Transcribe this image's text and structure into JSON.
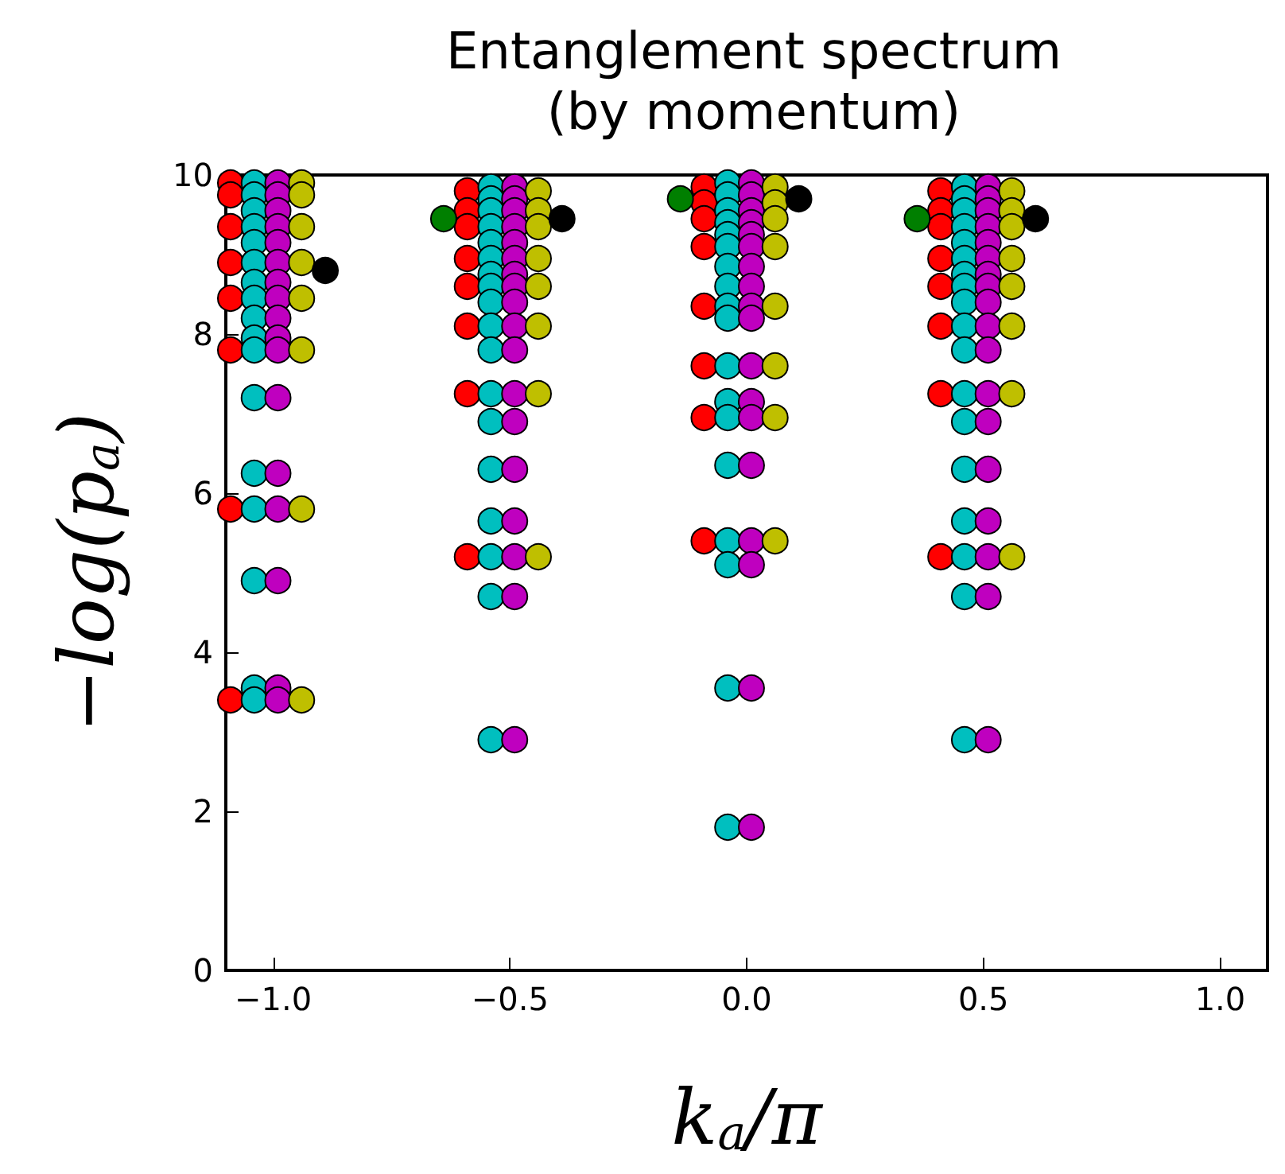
{
  "chart_data": {
    "type": "scatter",
    "title": "Entanglement spectrum\n(by momentum)",
    "xlabel": "k$_{a}$/π",
    "ylabel": "−log(p$_{a}$)",
    "marker": "circle",
    "grid": false,
    "xlim": [
      -1.1,
      1.1
    ],
    "xticks": [
      {
        "value": -1,
        "label": "−1.0"
      },
      {
        "value": -0.5,
        "label": "−0.5"
      },
      {
        "value": 0,
        "label": "0.0"
      },
      {
        "value": 0.5,
        "label": "0.5"
      },
      {
        "value": 1,
        "label": "1.0"
      }
    ],
    "ylim": [
      0,
      10
    ],
    "yticks": [
      0,
      2,
      4,
      6,
      8,
      10
    ],
    "series": [
      {
        "color": "#ff0000",
        "x": [
          -1.09,
          -1.09,
          -1.09,
          -1.09,
          -1.09,
          -1.09,
          -1.09,
          -1.09,
          -0.59,
          -0.59,
          -0.59,
          -0.59,
          -0.59,
          -0.59,
          -0.59,
          -0.59,
          -0.09,
          -0.09,
          -0.09,
          -0.09,
          -0.09,
          -0.09,
          -0.09,
          -0.09,
          0.41,
          0.41,
          0.41,
          0.41,
          0.41,
          0.41,
          0.41,
          0.41
        ],
        "values": [
          9.9,
          9.75,
          9.35,
          8.9,
          8.45,
          7.8,
          5.8,
          3.4,
          9.8,
          9.55,
          9.35,
          8.95,
          8.6,
          8.1,
          7.25,
          5.2,
          9.85,
          9.65,
          9.45,
          9.1,
          8.35,
          7.6,
          6.95,
          5.4,
          9.8,
          9.55,
          9.35,
          8.95,
          8.6,
          8.1,
          7.25,
          5.2
        ]
      },
      {
        "color": "#00bfbf",
        "x": [
          -1.04,
          -1.04,
          -1.04,
          -1.04,
          -1.04,
          -1.04,
          -1.04,
          -1.04,
          -1.04,
          -1.04,
          -1.04,
          -1.04,
          -1.04,
          -1.04,
          -1.04,
          -1.04,
          -1.04,
          -0.54,
          -0.54,
          -0.54,
          -0.54,
          -0.54,
          -0.54,
          -0.54,
          -0.54,
          -0.54,
          -0.54,
          -0.54,
          -0.54,
          -0.54,
          -0.54,
          -0.54,
          -0.54,
          -0.54,
          -0.54,
          -0.04,
          -0.04,
          -0.04,
          -0.04,
          -0.04,
          -0.04,
          -0.04,
          -0.04,
          -0.04,
          -0.04,
          -0.04,
          -0.04,
          -0.04,
          -0.04,
          -0.04,
          -0.04,
          -0.04,
          -0.04,
          0.46,
          0.46,
          0.46,
          0.46,
          0.46,
          0.46,
          0.46,
          0.46,
          0.46,
          0.46,
          0.46,
          0.46,
          0.46,
          0.46,
          0.46,
          0.46,
          0.46,
          0.46
        ],
        "values": [
          9.9,
          9.75,
          9.55,
          9.35,
          9.15,
          8.9,
          8.65,
          8.45,
          8.2,
          7.95,
          7.8,
          7.2,
          6.25,
          5.8,
          4.9,
          3.55,
          3.4,
          9.85,
          9.7,
          9.55,
          9.35,
          9.15,
          8.95,
          8.75,
          8.6,
          8.4,
          8.1,
          7.8,
          7.25,
          6.9,
          6.3,
          5.65,
          5.2,
          4.7,
          2.9,
          9.9,
          9.75,
          9.55,
          9.4,
          9.25,
          9.1,
          8.85,
          8.6,
          8.35,
          8.2,
          7.6,
          7.15,
          6.95,
          6.35,
          5.4,
          5.1,
          3.55,
          1.8,
          9.85,
          9.7,
          9.55,
          9.35,
          9.15,
          8.95,
          8.75,
          8.6,
          8.4,
          8.1,
          7.8,
          7.25,
          6.9,
          6.3,
          5.65,
          5.2,
          4.7,
          2.9
        ]
      },
      {
        "color": "#bf00bf",
        "x": [
          -0.99,
          -0.99,
          -0.99,
          -0.99,
          -0.99,
          -0.99,
          -0.99,
          -0.99,
          -0.99,
          -0.99,
          -0.99,
          -0.99,
          -0.99,
          -0.99,
          -0.99,
          -0.99,
          -0.99,
          -0.49,
          -0.49,
          -0.49,
          -0.49,
          -0.49,
          -0.49,
          -0.49,
          -0.49,
          -0.49,
          -0.49,
          -0.49,
          -0.49,
          -0.49,
          -0.49,
          -0.49,
          -0.49,
          -0.49,
          -0.49,
          0.01,
          0.01,
          0.01,
          0.01,
          0.01,
          0.01,
          0.01,
          0.01,
          0.01,
          0.01,
          0.01,
          0.01,
          0.01,
          0.01,
          0.01,
          0.01,
          0.01,
          0.01,
          0.51,
          0.51,
          0.51,
          0.51,
          0.51,
          0.51,
          0.51,
          0.51,
          0.51,
          0.51,
          0.51,
          0.51,
          0.51,
          0.51,
          0.51,
          0.51,
          0.51,
          0.51
        ],
        "values": [
          9.9,
          9.75,
          9.55,
          9.35,
          9.15,
          8.9,
          8.65,
          8.45,
          8.2,
          7.95,
          7.8,
          7.2,
          6.25,
          5.8,
          4.9,
          3.55,
          3.4,
          9.85,
          9.7,
          9.55,
          9.35,
          9.15,
          8.95,
          8.75,
          8.6,
          8.4,
          8.1,
          7.8,
          7.25,
          6.9,
          6.3,
          5.65,
          5.2,
          4.7,
          2.9,
          9.9,
          9.75,
          9.55,
          9.4,
          9.25,
          9.1,
          8.85,
          8.6,
          8.35,
          8.2,
          7.6,
          7.15,
          6.95,
          6.35,
          5.4,
          5.1,
          3.55,
          1.8,
          9.85,
          9.7,
          9.55,
          9.35,
          9.15,
          8.95,
          8.75,
          8.6,
          8.4,
          8.1,
          7.8,
          7.25,
          6.9,
          6.3,
          5.65,
          5.2,
          4.7,
          2.9
        ]
      },
      {
        "color": "#bfbf00",
        "x": [
          -0.94,
          -0.94,
          -0.94,
          -0.94,
          -0.94,
          -0.94,
          -0.94,
          -0.94,
          -0.44,
          -0.44,
          -0.44,
          -0.44,
          -0.44,
          -0.44,
          -0.44,
          -0.44,
          0.06,
          0.06,
          0.06,
          0.06,
          0.06,
          0.06,
          0.06,
          0.06,
          0.56,
          0.56,
          0.56,
          0.56,
          0.56,
          0.56,
          0.56,
          0.56
        ],
        "values": [
          9.9,
          9.75,
          9.35,
          8.9,
          8.45,
          7.8,
          5.8,
          3.4,
          9.8,
          9.55,
          9.35,
          8.95,
          8.6,
          8.1,
          7.25,
          5.2,
          9.85,
          9.65,
          9.45,
          9.1,
          8.35,
          7.6,
          6.95,
          5.4,
          9.8,
          9.55,
          9.35,
          8.95,
          8.6,
          8.1,
          7.25,
          5.2
        ]
      },
      {
        "color": "#007f00",
        "x": [
          -0.64,
          -0.14,
          0.36
        ],
        "values": [
          9.45,
          9.7,
          9.45
        ]
      },
      {
        "color": "#000000",
        "x": [
          -0.89,
          -0.39,
          0.11,
          0.61
        ],
        "values": [
          8.8,
          9.45,
          9.7,
          9.45
        ]
      }
    ]
  }
}
